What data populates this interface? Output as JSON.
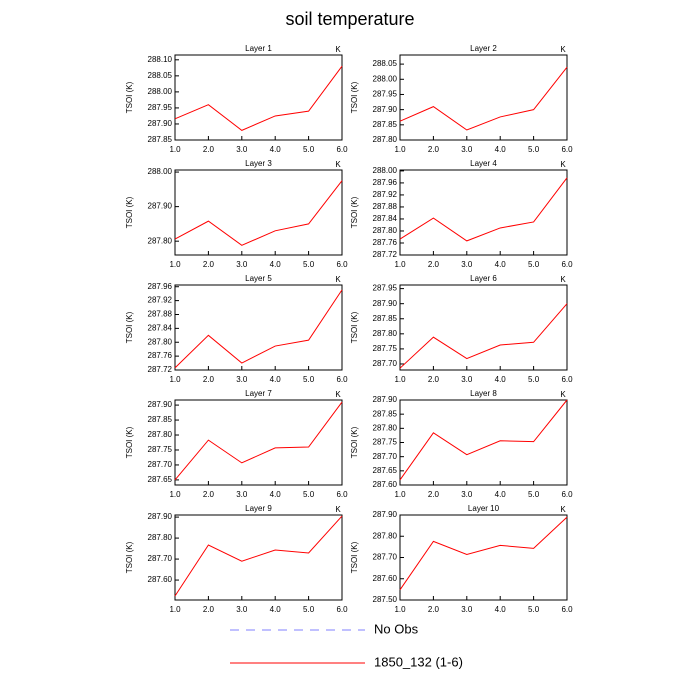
{
  "title": "soil temperature",
  "legend": [
    {
      "name": "No Obs",
      "color": "#8080ff",
      "dashed": true
    },
    {
      "name": "1850_132 (1-6)",
      "color": "#ff0000",
      "dashed": false
    }
  ],
  "chart_data": [
    {
      "type": "line",
      "title": "Layer 1",
      "units_label": "K",
      "y_label": "TSOI  (K)",
      "x": [
        1,
        2,
        3,
        4,
        5,
        6
      ],
      "xlim": [
        1,
        6
      ],
      "xticks": [
        {
          "value": 1,
          "label": "1.0"
        },
        {
          "value": 2,
          "label": "2.0"
        },
        {
          "value": 3,
          "label": "3.0"
        },
        {
          "value": 4,
          "label": "4.0"
        },
        {
          "value": 5,
          "label": "5.0"
        },
        {
          "value": 6,
          "label": "6.0"
        }
      ],
      "ylim": [
        287.85,
        288.115
      ],
      "yticks": [
        287.85,
        {
          "value": 287.9,
          "label": "287.90"
        },
        287.95,
        {
          "value": 288,
          "label": "288.00"
        },
        288.05,
        {
          "value": 288.1,
          "label": "288.10"
        }
      ],
      "series": [
        {
          "color": "#ff0000",
          "values": [
            287.916,
            287.96,
            287.88,
            287.925,
            287.94,
            288.08
          ]
        }
      ]
    },
    {
      "type": "line",
      "title": "Layer 2",
      "units_label": "K",
      "y_label": "TSOI  (K)",
      "x": [
        1,
        2,
        3,
        4,
        5,
        6
      ],
      "xlim": [
        1,
        6
      ],
      "xticks": [
        {
          "value": 1,
          "label": "1.0"
        },
        {
          "value": 2,
          "label": "2.0"
        },
        {
          "value": 3,
          "label": "3.0"
        },
        {
          "value": 4,
          "label": "4.0"
        },
        {
          "value": 5,
          "label": "5.0"
        },
        {
          "value": 6,
          "label": "6.0"
        }
      ],
      "ylim": [
        287.8,
        288.08
      ],
      "yticks": [
        {
          "value": 287.8,
          "label": "287.80"
        },
        287.85,
        {
          "value": 287.9,
          "label": "287.90"
        },
        287.95,
        {
          "value": 288,
          "label": "288.00"
        },
        288.05
      ],
      "series": [
        {
          "color": "#ff0000",
          "values": [
            287.862,
            287.91,
            287.833,
            287.876,
            287.9,
            288.04
          ]
        }
      ]
    },
    {
      "type": "line",
      "title": "Layer 3",
      "units_label": "K",
      "y_label": "TSOI  (K)",
      "x": [
        1,
        2,
        3,
        4,
        5,
        6
      ],
      "xlim": [
        1,
        6
      ],
      "xticks": [
        {
          "value": 1,
          "label": "1.0"
        },
        {
          "value": 2,
          "label": "2.0"
        },
        {
          "value": 3,
          "label": "3.0"
        },
        {
          "value": 4,
          "label": "4.0"
        },
        {
          "value": 5,
          "label": "5.0"
        },
        {
          "value": 6,
          "label": "6.0"
        }
      ],
      "ylim": [
        287.76,
        288.006
      ],
      "yticks": [
        {
          "value": 287.8,
          "label": "287.80"
        },
        {
          "value": 287.9,
          "label": "287.90"
        },
        {
          "value": 288,
          "label": "288.00"
        }
      ],
      "series": [
        {
          "color": "#ff0000",
          "values": [
            287.806,
            287.858,
            287.788,
            287.83,
            287.85,
            287.975
          ]
        }
      ]
    },
    {
      "type": "line",
      "title": "Layer 4",
      "units_label": "K",
      "y_label": "TSOI  (K)",
      "x": [
        1,
        2,
        3,
        4,
        5,
        6
      ],
      "xlim": [
        1,
        6
      ],
      "xticks": [
        {
          "value": 1,
          "label": "1.0"
        },
        {
          "value": 2,
          "label": "2.0"
        },
        {
          "value": 3,
          "label": "3.0"
        },
        {
          "value": 4,
          "label": "4.0"
        },
        {
          "value": 5,
          "label": "5.0"
        },
        {
          "value": 6,
          "label": "6.0"
        }
      ],
      "ylim": [
        287.72,
        288.003
      ],
      "yticks": [
        287.72,
        287.76,
        {
          "value": 287.8,
          "label": "287.80"
        },
        287.84,
        287.88,
        287.92,
        287.96,
        {
          "value": 288,
          "label": "288.00"
        }
      ],
      "series": [
        {
          "color": "#ff0000",
          "values": [
            287.773,
            287.843,
            287.767,
            287.81,
            287.83,
            287.977
          ]
        }
      ]
    },
    {
      "type": "line",
      "title": "Layer 5",
      "units_label": "K",
      "y_label": "TSOI  (K)",
      "x": [
        1,
        2,
        3,
        4,
        5,
        6
      ],
      "xlim": [
        1,
        6
      ],
      "xticks": [
        {
          "value": 1,
          "label": "1.0"
        },
        {
          "value": 2,
          "label": "2.0"
        },
        {
          "value": 3,
          "label": "3.0"
        },
        {
          "value": 4,
          "label": "4.0"
        },
        {
          "value": 5,
          "label": "5.0"
        },
        {
          "value": 6,
          "label": "6.0"
        }
      ],
      "ylim": [
        287.72,
        287.965
      ],
      "yticks": [
        287.72,
        287.76,
        {
          "value": 287.8,
          "label": "287.80"
        },
        287.84,
        287.88,
        287.92,
        287.96
      ],
      "series": [
        {
          "color": "#ff0000",
          "values": [
            287.726,
            287.82,
            287.74,
            287.789,
            287.806,
            287.951
          ]
        }
      ]
    },
    {
      "type": "line",
      "title": "Layer 6",
      "units_label": "K",
      "y_label": "TSOI  (K)",
      "x": [
        1,
        2,
        3,
        4,
        5,
        6
      ],
      "xlim": [
        1,
        6
      ],
      "xticks": [
        {
          "value": 1,
          "label": "1.0"
        },
        {
          "value": 2,
          "label": "2.0"
        },
        {
          "value": 3,
          "label": "3.0"
        },
        {
          "value": 4,
          "label": "4.0"
        },
        {
          "value": 5,
          "label": "5.0"
        },
        {
          "value": 6,
          "label": "6.0"
        }
      ],
      "ylim": [
        287.68,
        287.962
      ],
      "yticks": [
        {
          "value": 287.7,
          "label": "287.70"
        },
        287.75,
        {
          "value": 287.8,
          "label": "287.80"
        },
        287.85,
        {
          "value": 287.9,
          "label": "287.90"
        },
        287.95
      ],
      "series": [
        {
          "color": "#ff0000",
          "values": [
            287.686,
            287.789,
            287.718,
            287.763,
            287.772,
            287.9
          ]
        }
      ]
    },
    {
      "type": "line",
      "title": "Layer 7",
      "units_label": "K",
      "y_label": "TSOI  (K)",
      "x": [
        1,
        2,
        3,
        4,
        5,
        6
      ],
      "xlim": [
        1,
        6
      ],
      "xticks": [
        {
          "value": 1,
          "label": "1.0"
        },
        {
          "value": 2,
          "label": "2.0"
        },
        {
          "value": 3,
          "label": "3.0"
        },
        {
          "value": 4,
          "label": "4.0"
        },
        {
          "value": 5,
          "label": "5.0"
        },
        {
          "value": 6,
          "label": "6.0"
        }
      ],
      "ylim": [
        287.633,
        287.917
      ],
      "yticks": [
        287.65,
        {
          "value": 287.7,
          "label": "287.70"
        },
        287.75,
        {
          "value": 287.8,
          "label": "287.80"
        },
        287.85,
        {
          "value": 287.9,
          "label": "287.90"
        }
      ],
      "series": [
        {
          "color": "#ff0000",
          "values": [
            287.65,
            287.783,
            287.707,
            287.757,
            287.76,
            287.91
          ]
        }
      ]
    },
    {
      "type": "line",
      "title": "Layer 8",
      "units_label": "K",
      "y_label": "TSOI  (K)",
      "x": [
        1,
        2,
        3,
        4,
        5,
        6
      ],
      "xlim": [
        1,
        6
      ],
      "xticks": [
        {
          "value": 1,
          "label": "1.0"
        },
        {
          "value": 2,
          "label": "2.0"
        },
        {
          "value": 3,
          "label": "3.0"
        },
        {
          "value": 4,
          "label": "4.0"
        },
        {
          "value": 5,
          "label": "5.0"
        },
        {
          "value": 6,
          "label": "6.0"
        }
      ],
      "ylim": [
        287.6,
        287.9
      ],
      "yticks": [
        {
          "value": 287.6,
          "label": "287.60"
        },
        287.65,
        {
          "value": 287.7,
          "label": "287.70"
        },
        287.75,
        {
          "value": 287.8,
          "label": "287.80"
        },
        287.85,
        {
          "value": 287.9,
          "label": "287.90"
        }
      ],
      "series": [
        {
          "color": "#ff0000",
          "values": [
            287.618,
            287.784,
            287.707,
            287.756,
            287.753,
            287.9
          ]
        }
      ]
    },
    {
      "type": "line",
      "title": "Layer 9",
      "units_label": "K",
      "y_label": "TSOI  (K)",
      "x": [
        1,
        2,
        3,
        4,
        5,
        6
      ],
      "xlim": [
        1,
        6
      ],
      "xticks": [
        {
          "value": 1,
          "label": "1.0"
        },
        {
          "value": 2,
          "label": "2.0"
        },
        {
          "value": 3,
          "label": "3.0"
        },
        {
          "value": 4,
          "label": "4.0"
        },
        {
          "value": 5,
          "label": "5.0"
        },
        {
          "value": 6,
          "label": "6.0"
        }
      ],
      "ylim": [
        287.505,
        287.91
      ],
      "yticks": [
        {
          "value": 287.6,
          "label": "287.60"
        },
        {
          "value": 287.7,
          "label": "287.70"
        },
        {
          "value": 287.8,
          "label": "287.80"
        },
        {
          "value": 287.9,
          "label": "287.90"
        }
      ],
      "series": [
        {
          "color": "#ff0000",
          "values": [
            287.524,
            287.767,
            287.69,
            287.743,
            287.729,
            287.905
          ]
        }
      ]
    },
    {
      "type": "line",
      "title": "Layer 10",
      "units_label": "K",
      "y_label": "TSOI  (K)",
      "x": [
        1,
        2,
        3,
        4,
        5,
        6
      ],
      "xlim": [
        1,
        6
      ],
      "xticks": [
        {
          "value": 1,
          "label": "1.0"
        },
        {
          "value": 2,
          "label": "2.0"
        },
        {
          "value": 3,
          "label": "3.0"
        },
        {
          "value": 4,
          "label": "4.0"
        },
        {
          "value": 5,
          "label": "5.0"
        },
        {
          "value": 6,
          "label": "6.0"
        }
      ],
      "ylim": [
        287.5,
        287.9
      ],
      "yticks": [
        {
          "value": 287.5,
          "label": "287.50"
        },
        {
          "value": 287.6,
          "label": "287.60"
        },
        {
          "value": 287.7,
          "label": "287.70"
        },
        {
          "value": 287.8,
          "label": "287.80"
        },
        {
          "value": 287.9,
          "label": "287.90"
        }
      ],
      "series": [
        {
          "color": "#ff0000",
          "values": [
            287.548,
            287.776,
            287.714,
            287.757,
            287.743,
            287.89
          ]
        }
      ]
    }
  ]
}
